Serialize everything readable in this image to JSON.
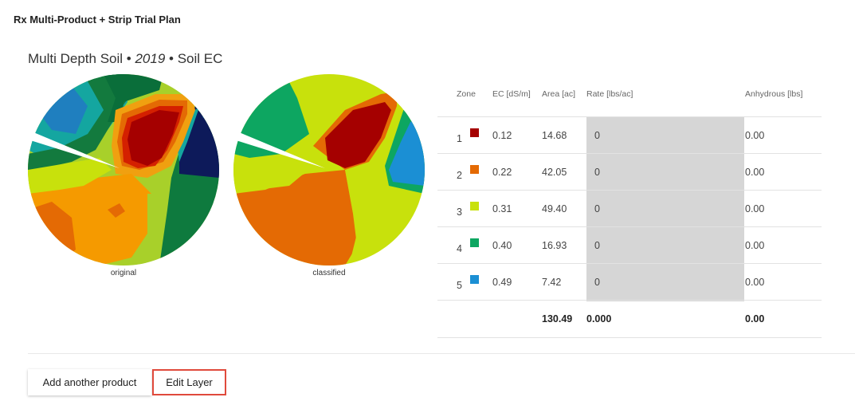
{
  "page": {
    "title": "Rx Multi-Product + Strip Trial Plan"
  },
  "layer": {
    "name": "Multi Depth Soil",
    "sep1": " • ",
    "year": "2019",
    "sep2": " • ",
    "attribute": "Soil EC"
  },
  "maps": {
    "original_caption": "original",
    "classified_caption": "classified"
  },
  "table": {
    "headers": {
      "zone": "Zone",
      "ec": "EC [dS/m]",
      "area": "Area [ac]",
      "rate": "Rate [lbs/ac]",
      "product": "Anhydrous [lbs]"
    },
    "rows": [
      {
        "zone": "1",
        "color": "#a50000",
        "ec": "0.12",
        "area": "14.68",
        "rate": "0",
        "product": "0.00"
      },
      {
        "zone": "2",
        "color": "#e46a04",
        "ec": "0.22",
        "area": "42.05",
        "rate": "0",
        "product": "0.00"
      },
      {
        "zone": "3",
        "color": "#c8e10c",
        "ec": "0.31",
        "area": "49.40",
        "rate": "0",
        "product": "0.00"
      },
      {
        "zone": "4",
        "color": "#0da661",
        "ec": "0.40",
        "area": "16.93",
        "rate": "0",
        "product": "0.00"
      },
      {
        "zone": "5",
        "color": "#1b8fd4",
        "ec": "0.49",
        "area": "7.42",
        "rate": "0",
        "product": "0.00"
      }
    ],
    "totals": {
      "area": "130.49",
      "rate": "0.000",
      "product": "0.00"
    }
  },
  "buttons": {
    "add_product": "Add another product",
    "edit_layer": "Edit Layer"
  }
}
